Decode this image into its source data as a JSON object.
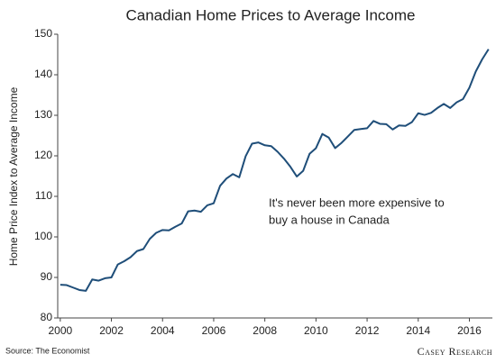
{
  "chart_data": {
    "type": "line",
    "title": "Canadian Home Prices to Average Income",
    "ylabel": "Home Price Index to Average Income",
    "annotation": [
      "It's never been more expensive to",
      "buy a house in Canada"
    ],
    "source": "Source: The Economist",
    "logo": "Casey Research",
    "x": [
      2000,
      2000.25,
      2000.5,
      2000.75,
      2001,
      2001.25,
      2001.5,
      2001.75,
      2002,
      2002.25,
      2002.5,
      2002.75,
      2003,
      2003.25,
      2003.5,
      2003.75,
      2004,
      2004.25,
      2004.5,
      2004.75,
      2005,
      2005.25,
      2005.5,
      2005.75,
      2006,
      2006.25,
      2006.5,
      2006.75,
      2007,
      2007.25,
      2007.5,
      2007.75,
      2008,
      2008.25,
      2008.5,
      2008.75,
      2009,
      2009.25,
      2009.5,
      2009.75,
      2010,
      2010.25,
      2010.5,
      2010.75,
      2011,
      2011.25,
      2011.5,
      2011.75,
      2012,
      2012.25,
      2012.5,
      2012.75,
      2013,
      2013.25,
      2013.5,
      2013.75,
      2014,
      2014.25,
      2014.5,
      2014.75,
      2015,
      2015.25,
      2015.5,
      2015.75,
      2016,
      2016.25,
      2016.5,
      2016.75
    ],
    "series": [
      {
        "name": "Home Price Index to Average Income",
        "color": "#1f4e79",
        "values": [
          88.2,
          88.1,
          87.5,
          86.9,
          86.7,
          89.5,
          89.2,
          89.8,
          90.0,
          93.2,
          94.0,
          95.0,
          96.5,
          97.0,
          99.5,
          101.0,
          101.7,
          101.6,
          102.5,
          103.3,
          106.3,
          106.5,
          106.2,
          107.8,
          108.3,
          112.6,
          114.4,
          115.5,
          114.7,
          119.9,
          123.0,
          123.3,
          122.6,
          122.4,
          121.0,
          119.3,
          117.3,
          114.9,
          116.3,
          120.5,
          121.9,
          125.4,
          124.5,
          121.9,
          123.2,
          124.8,
          126.4,
          126.6,
          126.8,
          128.6,
          127.9,
          127.8,
          126.5,
          127.5,
          127.4,
          128.3,
          130.5,
          130.1,
          130.6,
          131.8,
          132.8,
          131.8,
          133.2,
          134.0,
          136.8,
          140.8,
          143.8,
          146.3
        ]
      }
    ],
    "xlim": [
      1999.9,
      2016.9
    ],
    "xticks": [
      2000,
      2002,
      2004,
      2006,
      2008,
      2010,
      2012,
      2014,
      2016
    ],
    "ylim": [
      80,
      150
    ],
    "yticks": [
      80,
      90,
      100,
      110,
      120,
      130,
      140,
      150
    ],
    "grid": false
  }
}
